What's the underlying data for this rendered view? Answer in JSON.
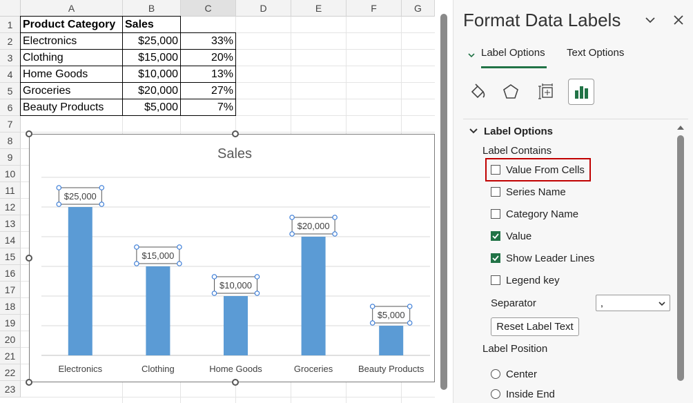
{
  "sheet": {
    "columns": [
      "A",
      "B",
      "C",
      "D",
      "E",
      "F",
      "G"
    ],
    "rows": [
      "1",
      "2",
      "3",
      "4",
      "5",
      "6",
      "7",
      "8",
      "9",
      "10",
      "11",
      "12",
      "13",
      "14",
      "15",
      "16",
      "17",
      "18",
      "19",
      "20",
      "21",
      "22",
      "23"
    ],
    "table": {
      "header": [
        "Product Category",
        "Sales"
      ],
      "data": [
        [
          "Electronics",
          "$25,000",
          "33%"
        ],
        [
          "Clothing",
          "$15,000",
          "20%"
        ],
        [
          "Home Goods",
          "$10,000",
          "13%"
        ],
        [
          "Groceries",
          "$20,000",
          "27%"
        ],
        [
          "Beauty Products",
          "$5,000",
          "7%"
        ]
      ]
    }
  },
  "chart_data": {
    "type": "bar",
    "title": "Sales",
    "categories": [
      "Electronics",
      "Clothing",
      "Home Goods",
      "Groceries",
      "Beauty Products"
    ],
    "values": [
      25000,
      15000,
      10000,
      20000,
      5000
    ],
    "data_labels": [
      "$25,000",
      "$15,000",
      "$10,000",
      "$20,000",
      "$5,000"
    ],
    "ylim": [
      0,
      30000
    ],
    "grid": true,
    "bar_color": "#5b9bd5"
  },
  "pane": {
    "title": "Format Data Labels",
    "tabs": [
      "Label Options",
      "Text Options"
    ],
    "section_title": "Label Options",
    "label_contains": "Label Contains",
    "checkboxes": [
      {
        "label": "Value From Cells",
        "checked": false
      },
      {
        "label": "Series Name",
        "checked": false
      },
      {
        "label": "Category Name",
        "checked": false
      },
      {
        "label": "Value",
        "checked": true
      },
      {
        "label": "Show Leader Lines",
        "checked": true
      },
      {
        "label": "Legend key",
        "checked": false
      }
    ],
    "separator_label": "Separator",
    "separator_value": ",",
    "reset_button": "Reset Label Text",
    "label_position": "Label Position",
    "positions": [
      "Center",
      "Inside End"
    ],
    "accent": "#217346",
    "highlight": "#c00000"
  }
}
